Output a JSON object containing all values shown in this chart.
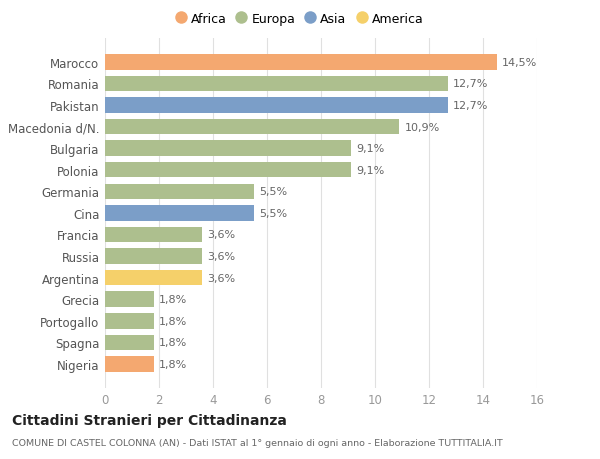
{
  "categories": [
    "Marocco",
    "Romania",
    "Pakistan",
    "Macedonia d/N.",
    "Bulgaria",
    "Polonia",
    "Germania",
    "Cina",
    "Francia",
    "Russia",
    "Argentina",
    "Grecia",
    "Portogallo",
    "Spagna",
    "Nigeria"
  ],
  "values": [
    14.5,
    12.7,
    12.7,
    10.9,
    9.1,
    9.1,
    5.5,
    5.5,
    3.6,
    3.6,
    3.6,
    1.8,
    1.8,
    1.8,
    1.8
  ],
  "labels": [
    "14,5%",
    "12,7%",
    "12,7%",
    "10,9%",
    "9,1%",
    "9,1%",
    "5,5%",
    "5,5%",
    "3,6%",
    "3,6%",
    "3,6%",
    "1,8%",
    "1,8%",
    "1,8%",
    "1,8%"
  ],
  "continents": [
    "Africa",
    "Europa",
    "Asia",
    "Europa",
    "Europa",
    "Europa",
    "Europa",
    "Asia",
    "Europa",
    "Europa",
    "America",
    "Europa",
    "Europa",
    "Europa",
    "Africa"
  ],
  "continent_colors": {
    "Africa": "#F4A870",
    "Europa": "#ADBF8E",
    "Asia": "#7B9EC8",
    "America": "#F5D06A"
  },
  "legend_order": [
    "Africa",
    "Europa",
    "Asia",
    "America"
  ],
  "title": "Cittadini Stranieri per Cittadinanza",
  "subtitle": "COMUNE DI CASTEL COLONNA (AN) - Dati ISTAT al 1° gennaio di ogni anno - Elaborazione TUTTITALIA.IT",
  "xlim": [
    0,
    16
  ],
  "xticks": [
    0,
    2,
    4,
    6,
    8,
    10,
    12,
    14,
    16
  ],
  "bg_color": "#ffffff",
  "grid_color": "#e0e0e0",
  "bar_height": 0.72
}
